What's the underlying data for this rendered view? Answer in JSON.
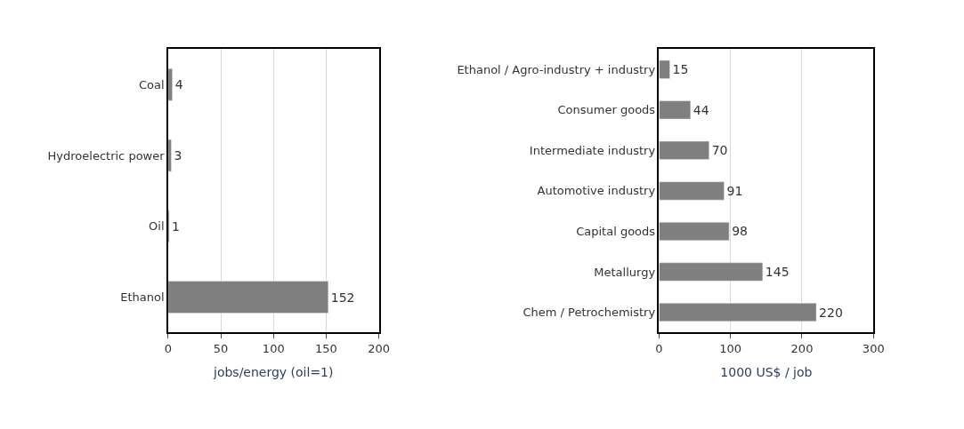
{
  "chart_data": [
    {
      "type": "bar",
      "orientation": "horizontal",
      "categories": [
        "Coal",
        "Hydroelectric power",
        "Oil",
        "Ethanol"
      ],
      "values": [
        4,
        3,
        1,
        152
      ],
      "color": "#7f7f7f",
      "xlabel": "jobs/energy (oil=1)",
      "xlim": [
        0,
        200
      ],
      "xticks": [
        0,
        50,
        100,
        150,
        200
      ],
      "grid": "x",
      "data_labels": true
    },
    {
      "type": "bar",
      "orientation": "horizontal",
      "categories": [
        "Ethanol / Agro-industry + industry",
        "Consumer goods",
        "Intermediate industry",
        "Automotive industry",
        "Capital goods",
        "Metallurgy",
        "Chem / Petrochemistry"
      ],
      "values": [
        15,
        44,
        70,
        91,
        98,
        145,
        220
      ],
      "color": "#7f7f7f",
      "xlabel": "1000 US$ / job",
      "xlim": [
        0,
        300
      ],
      "xticks": [
        0,
        100,
        200,
        300
      ],
      "grid": "x",
      "data_labels": true
    }
  ]
}
